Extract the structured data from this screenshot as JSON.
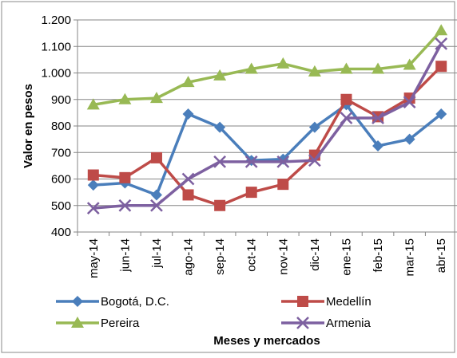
{
  "chart_data": {
    "type": "line",
    "x_label": "Meses y mercados",
    "y_label": "Valor en pesos",
    "categories": [
      "may-14",
      "jun-14",
      "jul-14",
      "ago-14",
      "sep-14",
      "oct-14",
      "nov-14",
      "dic-14",
      "ene-15",
      "feb-15",
      "mar-15",
      "abr-15"
    ],
    "series": [
      {
        "name": "Bogotá, D.C.",
        "color": "#4a7ebb",
        "marker": "diamond",
        "values": [
          577,
          585,
          540,
          845,
          795,
          670,
          675,
          795,
          880,
          725,
          750,
          845
        ]
      },
      {
        "name": "Medellín",
        "color": "#be4b48",
        "marker": "square",
        "values": [
          615,
          605,
          680,
          540,
          500,
          550,
          580,
          690,
          900,
          835,
          905,
          1025
        ]
      },
      {
        "name": "Pereira",
        "color": "#98b954",
        "marker": "triangle",
        "values": [
          880,
          900,
          905,
          965,
          990,
          1015,
          1035,
          1005,
          1015,
          1015,
          1030,
          1160
        ]
      },
      {
        "name": "Armenia",
        "color": "#7d60a0",
        "marker": "x",
        "values": [
          490,
          500,
          500,
          600,
          665,
          665,
          665,
          670,
          830,
          830,
          890,
          1110
        ]
      }
    ],
    "ylim": [
      400,
      1200
    ],
    "yticks": [
      400,
      500,
      600,
      700,
      800,
      900,
      {
        "value": 1000,
        "label": "1.000"
      },
      {
        "value": 1100,
        "label": "1.100"
      },
      {
        "value": 1200,
        "label": "1.200"
      }
    ],
    "grid": true
  }
}
